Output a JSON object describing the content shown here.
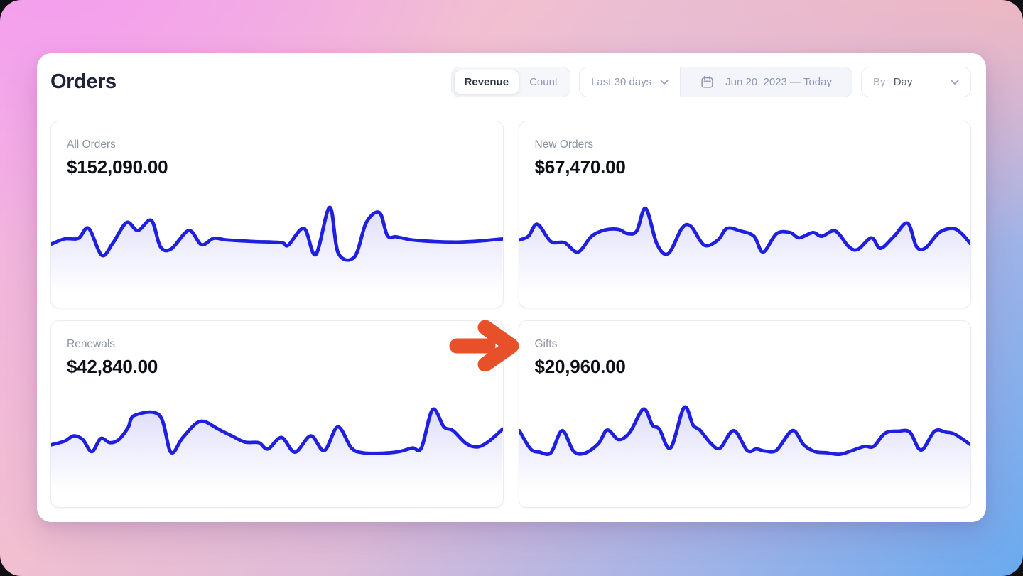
{
  "header": {
    "title": "Orders"
  },
  "toolbar": {
    "metric_toggle": {
      "options": [
        "Revenue",
        "Count"
      ],
      "selected": "Revenue"
    },
    "range_dropdown": {
      "value": "Last 30 days"
    },
    "date_range": {
      "value": "Jun 20, 2023 — Today"
    },
    "group_by": {
      "prefix": "By:",
      "value": "Day"
    }
  },
  "cards": [
    {
      "label": "All Orders",
      "value": "$152,090.00"
    },
    {
      "label": "New Orders",
      "value": "$67,470.00"
    },
    {
      "label": "Renewals",
      "value": "$42,840.00"
    },
    {
      "label": "Gifts",
      "value": "$20,960.00",
      "highlighted_by_arrow": true
    }
  ],
  "annotations": {
    "arrow": {
      "shape": "right-arrow",
      "points_at": "Gifts card",
      "color": "#e8502a"
    }
  },
  "colors": {
    "chart_line": "#1f1fe0",
    "chart_fill": "#5d59e6",
    "arrow": "#e8502a",
    "panel_bg": "#ffffff",
    "title_text": "#20243a",
    "value_text": "#0d1016",
    "label_text": "#8b919f",
    "muted_control_text": "#8e96b4",
    "bg_gradient": [
      "#f49fee",
      "#f6b7be",
      "#69aaef"
    ]
  },
  "chart_data": [
    {
      "type": "line",
      "title": "All Orders",
      "note": "sparkline, no axes; x = % of width, y = relative height 0-100",
      "x": [
        0,
        3,
        6,
        8.3,
        11.2,
        13.6,
        16.7,
        19.2,
        22.2,
        24.2,
        26.6,
        30.5,
        33.3,
        36,
        39,
        45,
        51,
        52.5,
        56,
        58.6,
        61.7,
        63.6,
        67.2,
        69.8,
        72.7,
        74.5,
        76.5,
        80,
        85,
        90,
        95,
        100
      ],
      "y": [
        30,
        40,
        41,
        60,
        9,
        31,
        71,
        56,
        75,
        25,
        21,
        56,
        29,
        41,
        38,
        35,
        33,
        28,
        60,
        10,
        100,
        13,
        6,
        71,
        90,
        46,
        44,
        38,
        35,
        34,
        36,
        40
      ]
    },
    {
      "type": "line",
      "title": "New Orders",
      "note": "sparkline, no axes; x = % of width, y = relative height 0-100",
      "x": [
        0,
        2,
        4,
        7,
        10,
        13,
        16,
        19,
        22,
        24,
        26,
        28,
        30.5,
        33,
        36,
        38,
        41,
        44,
        46,
        49,
        52,
        54,
        57,
        60,
        62,
        65,
        67,
        70,
        73,
        75,
        78,
        80,
        83,
        86,
        88,
        90,
        93,
        96,
        98,
        100
      ],
      "y": [
        38,
        45,
        68,
        35,
        33,
        15,
        45,
        57,
        58,
        50,
        55,
        98,
        30,
        12,
        60,
        64,
        28,
        38,
        60,
        55,
        45,
        15,
        50,
        52,
        42,
        52,
        45,
        55,
        25,
        20,
        42,
        22,
        45,
        70,
        25,
        23,
        52,
        60,
        50,
        30
      ]
    },
    {
      "type": "line",
      "title": "Renewals",
      "note": "sparkline, no axes; x = % of width, y = relative height 0-100",
      "x": [
        0,
        3,
        5,
        7,
        9,
        11,
        13,
        15,
        17,
        18.5,
        24,
        26.5,
        29,
        32,
        34,
        37,
        40,
        43,
        46,
        48,
        51,
        54,
        57.5,
        60.5,
        63.5,
        66.5,
        69,
        73,
        77,
        80,
        82,
        84.5,
        87,
        89,
        92,
        94.5,
        97,
        100
      ],
      "y": [
        28,
        35,
        45,
        38,
        15,
        40,
        32,
        38,
        60,
        84,
        84,
        14,
        40,
        68,
        72,
        58,
        45,
        33,
        32,
        20,
        42,
        14,
        45,
        17,
        62,
        22,
        13,
        12,
        15,
        22,
        22,
        95,
        62,
        55,
        30,
        24,
        35,
        58
      ]
    },
    {
      "type": "line",
      "title": "Gifts",
      "note": "sparkline, no axes; x = % of width, y = relative height 0-100",
      "x": [
        0,
        2.5,
        4.5,
        7,
        9.5,
        12,
        14.5,
        17.5,
        19.5,
        22,
        24.5,
        27.5,
        29.5,
        31,
        33.5,
        36.5,
        38.5,
        40,
        42.5,
        44.5,
        47.5,
        50.5,
        52.5,
        54.5,
        57,
        60.5,
        63,
        65.5,
        68,
        71,
        74,
        76.5,
        78.5,
        81,
        84,
        86.5,
        89,
        92,
        94.5,
        96.5,
        100
      ],
      "y": [
        55,
        20,
        14,
        13,
        55,
        16,
        12,
        30,
        56,
        38,
        52,
        96,
        65,
        58,
        22,
        99,
        65,
        56,
        30,
        22,
        55,
        17,
        20,
        16,
        18,
        55,
        28,
        15,
        13,
        10,
        18,
        25,
        25,
        50,
        54,
        52,
        18,
        54,
        52,
        48,
        28
      ]
    }
  ]
}
